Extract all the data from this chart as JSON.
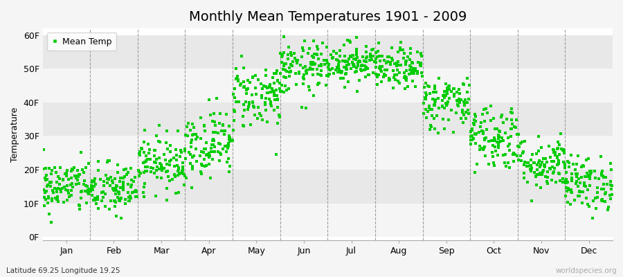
{
  "title": "Monthly Mean Temperatures 1901 - 2009",
  "ylabel": "Temperature",
  "subtitle_left": "Latitude 69.25 Longitude 19.25",
  "subtitle_right": "worldspecies.org",
  "legend_label": "Mean Temp",
  "marker_color": "#00cc00",
  "background_color": "#f5f5f5",
  "plot_bg": "#ffffff",
  "band_colors_dark": "#e8e8e8",
  "band_colors_light": "#f5f5f5",
  "ytick_labels": [
    "0F",
    "10F",
    "20F",
    "30F",
    "40F",
    "50F",
    "60F"
  ],
  "ytick_values": [
    0,
    10,
    20,
    30,
    40,
    50,
    60
  ],
  "ylim": [
    -1,
    62
  ],
  "months": [
    "Jan",
    "Feb",
    "Mar",
    "Apr",
    "May",
    "Jun",
    "Jul",
    "Aug",
    "Sep",
    "Oct",
    "Nov",
    "Dec"
  ],
  "month_means": [
    15,
    14,
    22,
    28,
    42,
    50,
    52,
    50,
    40,
    30,
    22,
    16
  ],
  "month_stds": [
    4,
    4,
    4,
    5,
    5,
    4,
    3,
    3,
    4,
    5,
    4,
    4
  ],
  "n_years": 109,
  "title_fontsize": 14,
  "axis_fontsize": 9,
  "tick_fontsize": 9,
  "marker_size": 3
}
